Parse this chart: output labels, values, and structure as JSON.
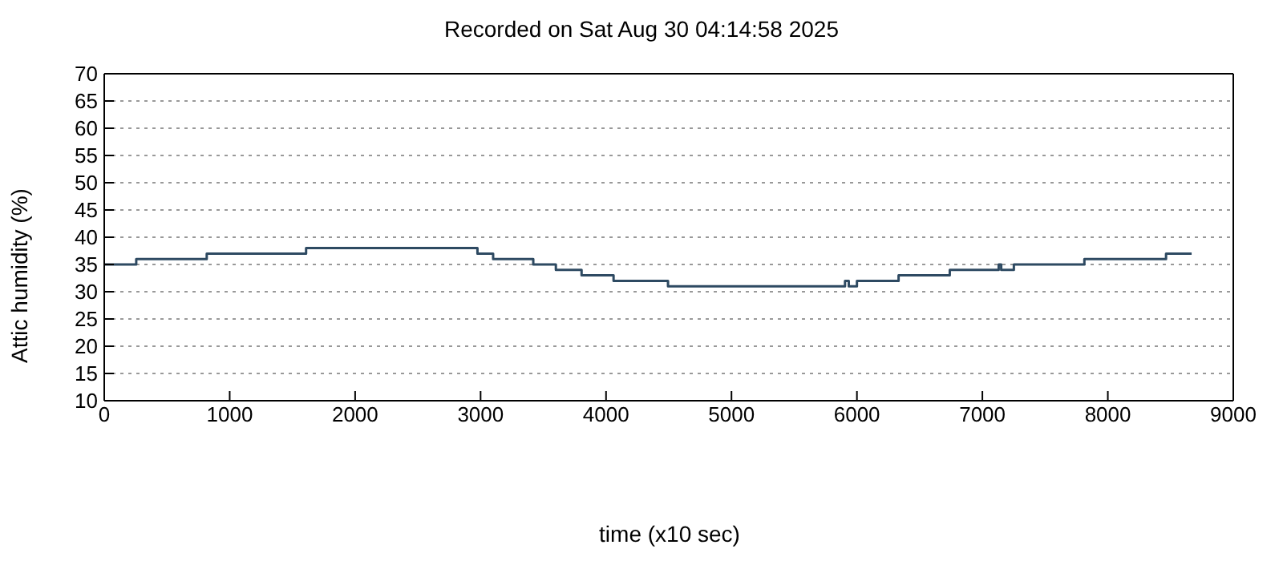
{
  "chart_data": {
    "type": "step",
    "title": "Recorded on Sat Aug 30 04:14:58 2025",
    "xlabel": "time (x10 sec)",
    "ylabel": "Attic humidity (%)",
    "x": [
      0,
      255,
      817,
      1609,
      2975,
      3100,
      3420,
      3600,
      3805,
      4060,
      4494,
      5905,
      5935,
      6000,
      6332,
      6740,
      7130,
      7150,
      7251,
      7813,
      8464,
      8668
    ],
    "series": [
      {
        "color": "#2e4a62",
        "values": [
          35,
          36,
          37,
          38,
          37,
          36,
          35,
          34,
          33,
          32,
          31,
          32,
          31,
          32,
          33,
          34,
          35,
          34,
          35,
          36,
          37,
          37
        ]
      }
    ],
    "xlim": [
      0,
      9000
    ],
    "xticks": [
      0,
      1000,
      2000,
      3000,
      4000,
      5000,
      6000,
      7000,
      8000,
      9000
    ],
    "ylim": [
      10,
      70
    ],
    "yticks": [
      10,
      15,
      20,
      25,
      30,
      35,
      40,
      45,
      50,
      55,
      60,
      65,
      70
    ],
    "grid": "y",
    "marker": "none",
    "line_style": "solid"
  }
}
